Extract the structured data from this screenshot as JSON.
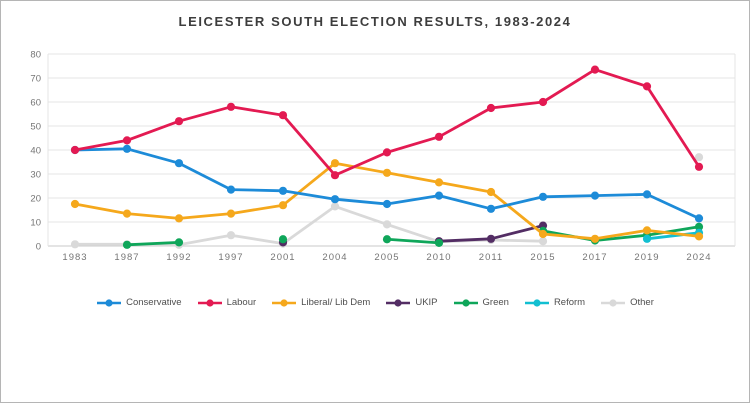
{
  "chart_data": {
    "type": "line",
    "title": "LEICESTER SOUTH ELECTION RESULTS, 1983-2024",
    "categories": [
      "1983",
      "1987",
      "1992",
      "1997",
      "2001",
      "2004",
      "2005",
      "2010",
      "2011",
      "2015",
      "2017",
      "2019",
      "2024"
    ],
    "y_ticks": [
      0,
      10,
      20,
      30,
      40,
      50,
      60,
      70,
      80
    ],
    "ylim": [
      0,
      80
    ],
    "grid": true,
    "legend_position": "bottom",
    "colors": {
      "grid": "#e4e4e4",
      "axis": "#c9c9c9",
      "tick_text": "#757575",
      "title_text": "#3d3d3d"
    },
    "series": [
      {
        "name": "Conservative",
        "color": "#1d8bd8",
        "values": [
          40,
          40.5,
          34.5,
          23.5,
          23,
          19.5,
          17.5,
          21,
          15.5,
          20.5,
          21,
          21.5,
          11.5
        ]
      },
      {
        "name": "Labour",
        "color": "#e31a52",
        "values": [
          40,
          44,
          52,
          58,
          54.5,
          29.5,
          39,
          45.5,
          57.5,
          60,
          73.5,
          66.5,
          33
        ]
      },
      {
        "name": "Liberal/ Lib Dem",
        "color": "#f5a81c",
        "values": [
          17.5,
          13.5,
          11.5,
          13.5,
          17,
          34.5,
          30.5,
          26.5,
          22.5,
          5,
          3,
          6.5,
          4
        ]
      },
      {
        "name": "UKIP",
        "color": "#532d64",
        "values": [
          null,
          null,
          null,
          null,
          1.5,
          null,
          null,
          2,
          3,
          8.5,
          null,
          null,
          null
        ]
      },
      {
        "name": "Green",
        "color": "#0fa65a",
        "values": [
          null,
          0.5,
          1.5,
          null,
          2.8,
          null,
          2.8,
          1.3,
          null,
          6.3,
          2.3,
          4.5,
          8
        ]
      },
      {
        "name": "Reform",
        "color": "#12bfd1",
        "values": [
          null,
          null,
          null,
          null,
          null,
          null,
          null,
          null,
          null,
          null,
          null,
          3,
          5.5
        ]
      },
      {
        "name": "Other",
        "color": "#d9d9d9",
        "values": [
          0.7,
          0.7,
          0.5,
          4.5,
          1,
          16.5,
          9,
          1.8,
          2.5,
          2,
          null,
          null,
          37
        ]
      }
    ]
  }
}
